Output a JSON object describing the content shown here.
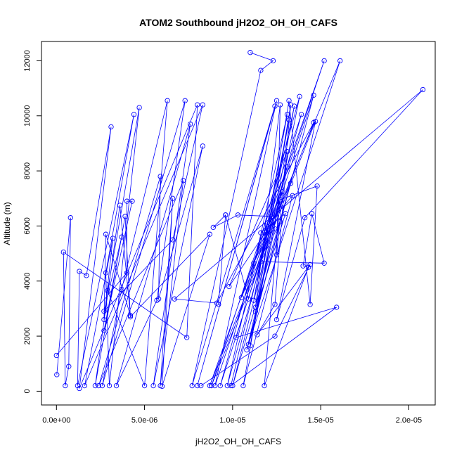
{
  "chart_data": {
    "type": "line",
    "title": "ATOM2 Southbound jH2O2_OH_OH_CAFS",
    "xlabel": "jH2O2_OH_OH_CAFS",
    "ylabel": "Altitude (m)",
    "xlim": [
      -8.5e-07,
      2.15e-05
    ],
    "ylim": [
      -500,
      12700
    ],
    "xticks": [
      0,
      5e-06,
      1e-05,
      1.5e-05,
      2e-05
    ],
    "xtick_labels": [
      "0.0e+00",
      "5.0e-06",
      "1.0e-05",
      "1.5e-05",
      "2.0e-05"
    ],
    "yticks": [
      0,
      2000,
      4000,
      6000,
      8000,
      10000,
      12000
    ],
    "ytick_labels": [
      "0",
      "2000",
      "4000",
      "6000",
      "8000",
      "10000",
      "12000"
    ],
    "grid": false,
    "series": [
      {
        "color": "#0000ff",
        "points": [
          [
            2e-08,
            600
          ],
          [
            8e-07,
            6300
          ],
          [
            7e-07,
            900
          ],
          [
            5e-07,
            200
          ],
          [
            4e-07,
            5050
          ],
          [
            7.4e-06,
            1950
          ],
          [
            8e-06,
            10400
          ],
          [
            1.3e-06,
            100
          ],
          [
            3.1e-06,
            9600
          ],
          [
            1.7e-06,
            4200
          ],
          [
            1.3e-06,
            4350
          ],
          [
            1.2e-06,
            200
          ],
          [
            4.4e-06,
            10050
          ],
          [
            2.8e-06,
            4300
          ],
          [
            3e-06,
            200
          ],
          [
            4.7e-06,
            10300
          ],
          [
            2.9e-06,
            3650
          ],
          [
            5e-06,
            200
          ],
          [
            6.3e-06,
            10550
          ],
          [
            3.7e-06,
            3700
          ],
          [
            2.6e-06,
            200
          ],
          [
            7.3e-06,
            10550
          ],
          [
            5.7e-06,
            3300
          ],
          [
            3.4e-06,
            200
          ],
          [
            7.6e-06,
            9700
          ],
          [
            5.5e-06,
            200
          ],
          [
            8.3e-06,
            8900
          ],
          [
            5.8e-06,
            3350
          ],
          [
            5.9e-06,
            7800
          ],
          [
            2.4e-06,
            200
          ],
          [
            7.2e-06,
            7650
          ],
          [
            5.9e-06,
            200
          ],
          [
            6.6e-06,
            7000
          ],
          [
            6e-06,
            180
          ],
          [
            8.7e-06,
            5700
          ],
          [
            4.2e-06,
            2700
          ],
          [
            3.9e-06,
            6350
          ],
          [
            2.2e-06,
            200
          ],
          [
            3.6e-06,
            6750
          ],
          [
            4.2e-06,
            2750
          ],
          [
            2.8e-06,
            5700
          ],
          [
            2.7e-06,
            2600
          ],
          [
            3.2e-06,
            5550
          ],
          [
            1.6e-06,
            200
          ],
          [
            8.3e-06,
            10400
          ],
          [
            6.6e-06,
            5500
          ],
          [
            2.7e-06,
            2900
          ],
          [
            3.7e-06,
            5600
          ],
          [
            2.7e-06,
            2200
          ],
          [
            4.3e-06,
            6900
          ],
          [
            4e-06,
            6900
          ],
          [
            4e-06,
            4300
          ],
          [
            0.0,
            1300
          ]
        ]
      },
      {
        "color": "#0000ff",
        "points": [
          [
            1.1e-05,
            12300
          ],
          [
            1.23e-05,
            12000
          ],
          [
            1.16e-05,
            11650
          ],
          [
            7.7e-06,
            200
          ],
          [
            1.24e-05,
            10350
          ],
          [
            8e-06,
            200
          ],
          [
            1.25e-05,
            10550
          ],
          [
            9e-06,
            200
          ],
          [
            1.52e-05,
            12000
          ],
          [
            1.05e-05,
            3400
          ],
          [
            1.61e-05,
            12000
          ],
          [
            1.09e-05,
            1700
          ],
          [
            1.46e-05,
            10750
          ],
          [
            9.3e-06,
            200
          ],
          [
            1.38e-05,
            10700
          ],
          [
            1.1e-05,
            1650
          ],
          [
            1.33e-05,
            10400
          ],
          [
            1.25e-05,
            4950
          ],
          [
            1.27e-05,
            10400
          ],
          [
            1.13e-05,
            3050
          ],
          [
            1.32e-05,
            9850
          ],
          [
            1.12e-05,
            3300
          ],
          [
            1.31e-05,
            10050
          ],
          [
            9.7e-06,
            200
          ],
          [
            1.39e-05,
            10050
          ],
          [
            8.8e-06,
            200
          ],
          [
            1.47e-05,
            9800
          ],
          [
            1.25e-05,
            2600
          ],
          [
            1.41e-05,
            6300
          ],
          [
            2.08e-05,
            10950
          ],
          [
            6.7e-06,
            3350
          ],
          [
            9.1e-06,
            3200
          ],
          [
            1.46e-05,
            9750
          ],
          [
            8.7e-06,
            200
          ],
          [
            1.31e-05,
            8150
          ],
          [
            1e-05,
            200
          ],
          [
            1.33e-05,
            7550
          ],
          [
            1.12e-05,
            4650
          ],
          [
            1.28e-05,
            7250
          ],
          [
            1.13e-05,
            2900
          ],
          [
            1.3e-05,
            6450
          ],
          [
            1.16e-05,
            5750
          ],
          [
            1.34e-05,
            7100
          ],
          [
            1.06e-05,
            200
          ],
          [
            1.35e-05,
            10350
          ],
          [
            1.2e-05,
            5850
          ],
          [
            1.19e-05,
            5450
          ],
          [
            1.02e-05,
            1950
          ],
          [
            1.59e-05,
            3050
          ],
          [
            9.9e-06,
            200
          ],
          [
            1.21e-05,
            6100
          ],
          [
            1.09e-05,
            3350
          ],
          [
            9.6e-06,
            6400
          ],
          [
            9.2e-06,
            3150
          ],
          [
            9.6e-06,
            6400
          ],
          [
            8.9e-06,
            5950
          ],
          [
            1.03e-05,
            6400
          ],
          [
            1.22e-05,
            6350
          ],
          [
            1.24e-05,
            5900
          ],
          [
            1.08e-05,
            1500
          ],
          [
            1.27e-05,
            6150
          ],
          [
            1.16e-05,
            4700
          ],
          [
            1.52e-05,
            4650
          ],
          [
            1.45e-05,
            6450
          ],
          [
            1.4e-05,
            4550
          ],
          [
            1.43e-05,
            4500
          ],
          [
            1.18e-05,
            200
          ],
          [
            1.27e-05,
            6950
          ],
          [
            1.48e-05,
            7450
          ],
          [
            1.44e-05,
            3150
          ],
          [
            1.32e-05,
            10550
          ],
          [
            1.2e-05,
            5900
          ],
          [
            9.8e-06,
            3800
          ],
          [
            1.31e-05,
            8700
          ],
          [
            1.24e-05,
            3150
          ],
          [
            1.14e-05,
            2050
          ],
          [
            1.44e-05,
            4600
          ],
          [
            1.24e-05,
            2000
          ],
          [
            8.2e-06,
            200
          ]
        ]
      }
    ]
  }
}
